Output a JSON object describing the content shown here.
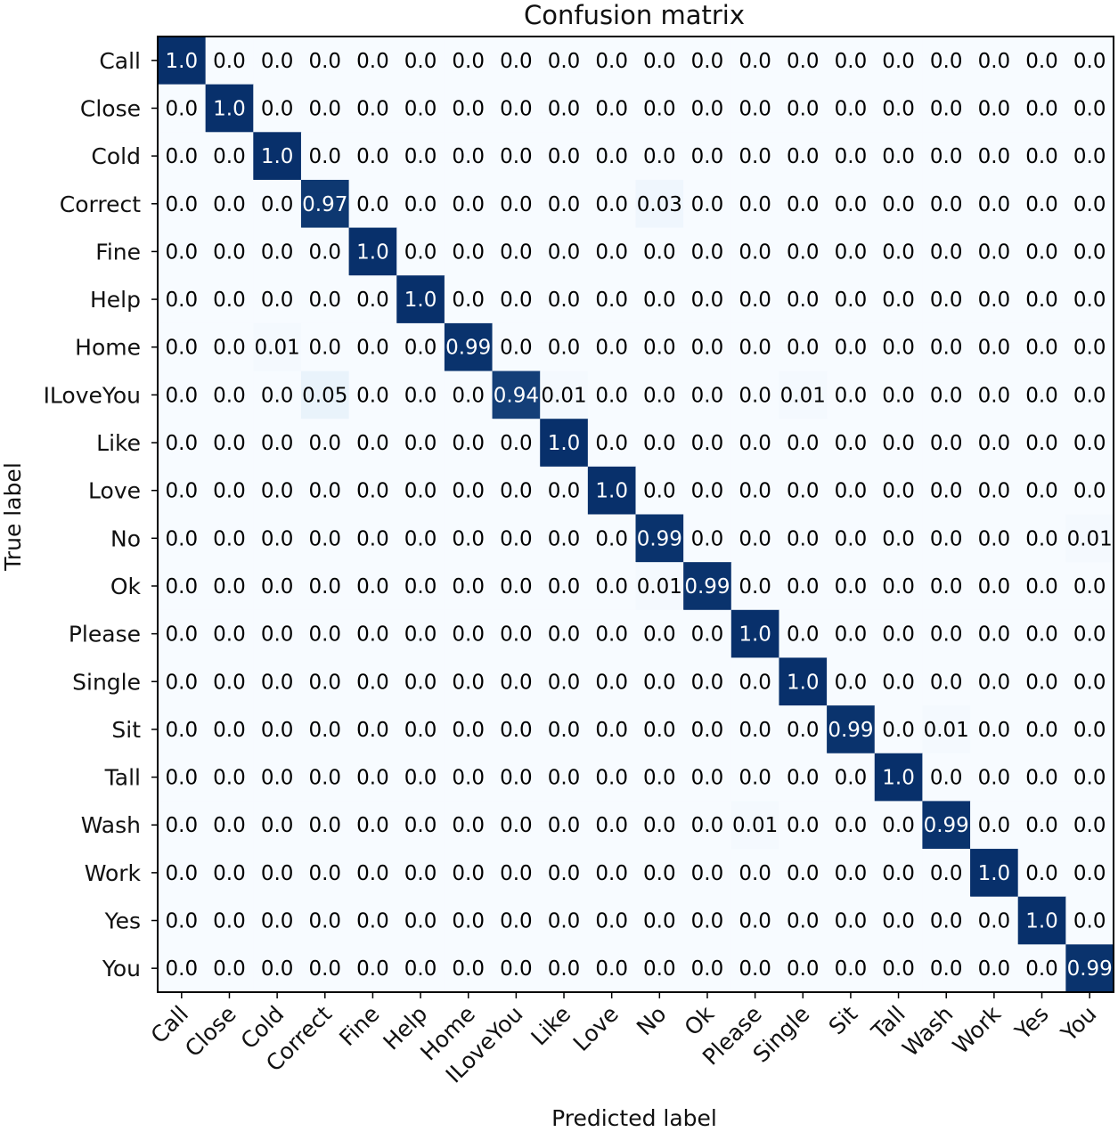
{
  "chart_data": {
    "type": "heatmap",
    "title": "Confusion matrix",
    "xlabel": "Predicted label",
    "ylabel": "True label",
    "categories": [
      "Call",
      "Close",
      "Cold",
      "Correct",
      "Fine",
      "Help",
      "Home",
      "ILoveYou",
      "Like",
      "Love",
      "No",
      "Ok",
      "Please",
      "Single",
      "Sit",
      "Tall",
      "Wash",
      "Work",
      "Yes",
      "You"
    ],
    "cell_labels": [
      [
        "1.0",
        "0.0",
        "0.0",
        "0.0",
        "0.0",
        "0.0",
        "0.0",
        "0.0",
        "0.0",
        "0.0",
        "0.0",
        "0.0",
        "0.0",
        "0.0",
        "0.0",
        "0.0",
        "0.0",
        "0.0",
        "0.0",
        "0.0"
      ],
      [
        "0.0",
        "1.0",
        "0.0",
        "0.0",
        "0.0",
        "0.0",
        "0.0",
        "0.0",
        "0.0",
        "0.0",
        "0.0",
        "0.0",
        "0.0",
        "0.0",
        "0.0",
        "0.0",
        "0.0",
        "0.0",
        "0.0",
        "0.0"
      ],
      [
        "0.0",
        "0.0",
        "1.0",
        "0.0",
        "0.0",
        "0.0",
        "0.0",
        "0.0",
        "0.0",
        "0.0",
        "0.0",
        "0.0",
        "0.0",
        "0.0",
        "0.0",
        "0.0",
        "0.0",
        "0.0",
        "0.0",
        "0.0"
      ],
      [
        "0.0",
        "0.0",
        "0.0",
        "0.97",
        "0.0",
        "0.0",
        "0.0",
        "0.0",
        "0.0",
        "0.0",
        "0.03",
        "0.0",
        "0.0",
        "0.0",
        "0.0",
        "0.0",
        "0.0",
        "0.0",
        "0.0",
        "0.0"
      ],
      [
        "0.0",
        "0.0",
        "0.0",
        "0.0",
        "1.0",
        "0.0",
        "0.0",
        "0.0",
        "0.0",
        "0.0",
        "0.0",
        "0.0",
        "0.0",
        "0.0",
        "0.0",
        "0.0",
        "0.0",
        "0.0",
        "0.0",
        "0.0"
      ],
      [
        "0.0",
        "0.0",
        "0.0",
        "0.0",
        "0.0",
        "1.0",
        "0.0",
        "0.0",
        "0.0",
        "0.0",
        "0.0",
        "0.0",
        "0.0",
        "0.0",
        "0.0",
        "0.0",
        "0.0",
        "0.0",
        "0.0",
        "0.0"
      ],
      [
        "0.0",
        "0.0",
        "0.01",
        "0.0",
        "0.0",
        "0.0",
        "0.99",
        "0.0",
        "0.0",
        "0.0",
        "0.0",
        "0.0",
        "0.0",
        "0.0",
        "0.0",
        "0.0",
        "0.0",
        "0.0",
        "0.0",
        "0.0"
      ],
      [
        "0.0",
        "0.0",
        "0.0",
        "0.05",
        "0.0",
        "0.0",
        "0.0",
        "0.94",
        "0.01",
        "0.0",
        "0.0",
        "0.0",
        "0.0",
        "0.01",
        "0.0",
        "0.0",
        "0.0",
        "0.0",
        "0.0",
        "0.0"
      ],
      [
        "0.0",
        "0.0",
        "0.0",
        "0.0",
        "0.0",
        "0.0",
        "0.0",
        "0.0",
        "1.0",
        "0.0",
        "0.0",
        "0.0",
        "0.0",
        "0.0",
        "0.0",
        "0.0",
        "0.0",
        "0.0",
        "0.0",
        "0.0"
      ],
      [
        "0.0",
        "0.0",
        "0.0",
        "0.0",
        "0.0",
        "0.0",
        "0.0",
        "0.0",
        "0.0",
        "1.0",
        "0.0",
        "0.0",
        "0.0",
        "0.0",
        "0.0",
        "0.0",
        "0.0",
        "0.0",
        "0.0",
        "0.0"
      ],
      [
        "0.0",
        "0.0",
        "0.0",
        "0.0",
        "0.0",
        "0.0",
        "0.0",
        "0.0",
        "0.0",
        "0.0",
        "0.99",
        "0.0",
        "0.0",
        "0.0",
        "0.0",
        "0.0",
        "0.0",
        "0.0",
        "0.0",
        "0.01"
      ],
      [
        "0.0",
        "0.0",
        "0.0",
        "0.0",
        "0.0",
        "0.0",
        "0.0",
        "0.0",
        "0.0",
        "0.0",
        "0.01",
        "0.99",
        "0.0",
        "0.0",
        "0.0",
        "0.0",
        "0.0",
        "0.0",
        "0.0",
        "0.0"
      ],
      [
        "0.0",
        "0.0",
        "0.0",
        "0.0",
        "0.0",
        "0.0",
        "0.0",
        "0.0",
        "0.0",
        "0.0",
        "0.0",
        "0.0",
        "1.0",
        "0.0",
        "0.0",
        "0.0",
        "0.0",
        "0.0",
        "0.0",
        "0.0"
      ],
      [
        "0.0",
        "0.0",
        "0.0",
        "0.0",
        "0.0",
        "0.0",
        "0.0",
        "0.0",
        "0.0",
        "0.0",
        "0.0",
        "0.0",
        "0.0",
        "1.0",
        "0.0",
        "0.0",
        "0.0",
        "0.0",
        "0.0",
        "0.0"
      ],
      [
        "0.0",
        "0.0",
        "0.0",
        "0.0",
        "0.0",
        "0.0",
        "0.0",
        "0.0",
        "0.0",
        "0.0",
        "0.0",
        "0.0",
        "0.0",
        "0.0",
        "0.99",
        "0.0",
        "0.01",
        "0.0",
        "0.0",
        "0.0"
      ],
      [
        "0.0",
        "0.0",
        "0.0",
        "0.0",
        "0.0",
        "0.0",
        "0.0",
        "0.0",
        "0.0",
        "0.0",
        "0.0",
        "0.0",
        "0.0",
        "0.0",
        "0.0",
        "1.0",
        "0.0",
        "0.0",
        "0.0",
        "0.0"
      ],
      [
        "0.0",
        "0.0",
        "0.0",
        "0.0",
        "0.0",
        "0.0",
        "0.0",
        "0.0",
        "0.0",
        "0.0",
        "0.0",
        "0.0",
        "0.01",
        "0.0",
        "0.0",
        "0.0",
        "0.99",
        "0.0",
        "0.0",
        "0.0"
      ],
      [
        "0.0",
        "0.0",
        "0.0",
        "0.0",
        "0.0",
        "0.0",
        "0.0",
        "0.0",
        "0.0",
        "0.0",
        "0.0",
        "0.0",
        "0.0",
        "0.0",
        "0.0",
        "0.0",
        "0.0",
        "1.0",
        "0.0",
        "0.0"
      ],
      [
        "0.0",
        "0.0",
        "0.0",
        "0.0",
        "0.0",
        "0.0",
        "0.0",
        "0.0",
        "0.0",
        "0.0",
        "0.0",
        "0.0",
        "0.0",
        "0.0",
        "0.0",
        "0.0",
        "0.0",
        "0.0",
        "1.0",
        "0.0"
      ],
      [
        "0.0",
        "0.0",
        "0.0",
        "0.0",
        "0.0",
        "0.0",
        "0.0",
        "0.0",
        "0.0",
        "0.0",
        "0.0",
        "0.0",
        "0.0",
        "0.0",
        "0.0",
        "0.0",
        "0.0",
        "0.0",
        "0.0",
        "0.99"
      ]
    ],
    "colormap": "Blues",
    "colors": {
      "low": "#f7fbff",
      "mid": "#6baed6",
      "high": "#08306b",
      "text_dark": "#000000",
      "text_light": "#ffffff",
      "frame": "#000000"
    }
  }
}
